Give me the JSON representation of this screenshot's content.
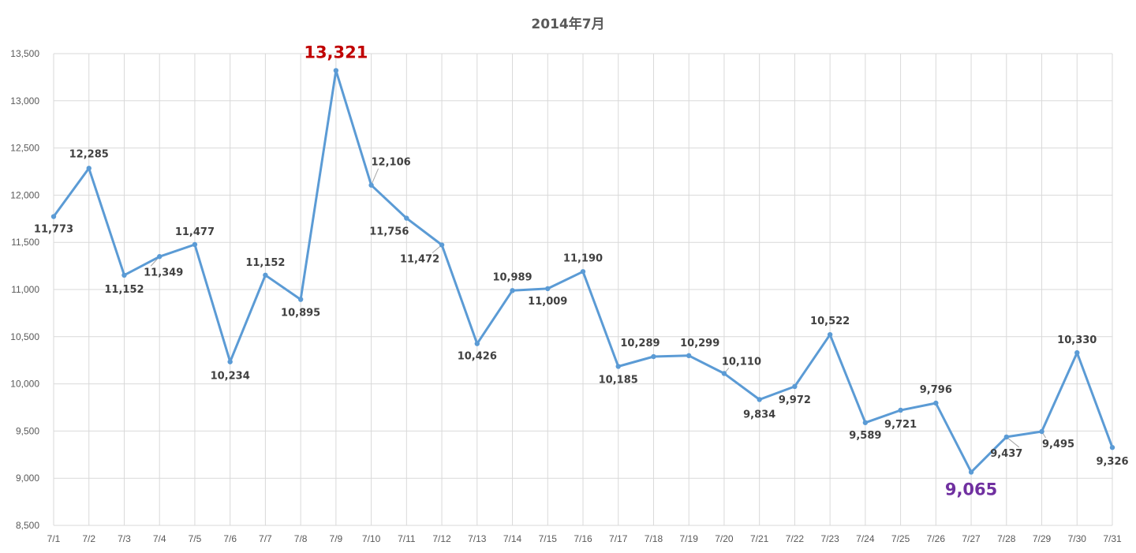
{
  "chart_data": {
    "type": "line",
    "title": "2014年7月",
    "xlabel": "",
    "ylabel": "",
    "ylim": [
      8500,
      13500
    ],
    "ytick_step": 500,
    "grid": true,
    "legend": "none",
    "categories": [
      "7/1",
      "7/2",
      "7/3",
      "7/4",
      "7/5",
      "7/6",
      "7/7",
      "7/8",
      "7/9",
      "7/10",
      "7/11",
      "7/12",
      "7/13",
      "7/14",
      "7/15",
      "7/16",
      "7/17",
      "7/18",
      "7/19",
      "7/20",
      "7/21",
      "7/22",
      "7/23",
      "7/24",
      "7/25",
      "7/26",
      "7/27",
      "7/28",
      "7/29",
      "7/30",
      "7/31"
    ],
    "values": [
      11773,
      12285,
      11152,
      11349,
      11477,
      10234,
      11152,
      10895,
      13321,
      12106,
      11756,
      11472,
      10426,
      10989,
      11009,
      11190,
      10185,
      10289,
      10299,
      10110,
      9834,
      9972,
      10522,
      9589,
      9721,
      9796,
      9065,
      9437,
      9495,
      10330,
      9326
    ],
    "data_labels": [
      "11,773",
      "12,285",
      "11,152",
      "11,349",
      "11,477",
      "10,234",
      "11,152",
      "10,895",
      "13,321",
      "12,106",
      "11,756",
      "11,472",
      "10,426",
      "10,989",
      "11,009",
      "11,190",
      "10,185",
      "10,289",
      "10,299",
      "10,110",
      "9,834",
      "9,972",
      "10,522",
      "9,589",
      "9,721",
      "9,796",
      "9,065",
      "9,437",
      "9,495",
      "10,330",
      "9,326"
    ],
    "ytick_labels": [
      "8,500",
      "9,000",
      "9,500",
      "10,000",
      "10,500",
      "11,000",
      "11,500",
      "12,000",
      "12,500",
      "13,000",
      "13,500"
    ],
    "highlight_max_index": 8,
    "highlight_min_index": 26,
    "colors": {
      "line": "#5b9bd5",
      "grid": "#d9d9d9",
      "max_label": "#c00000",
      "min_label": "#7030a0",
      "label": "#404040",
      "axis_text": "#595959"
    }
  }
}
